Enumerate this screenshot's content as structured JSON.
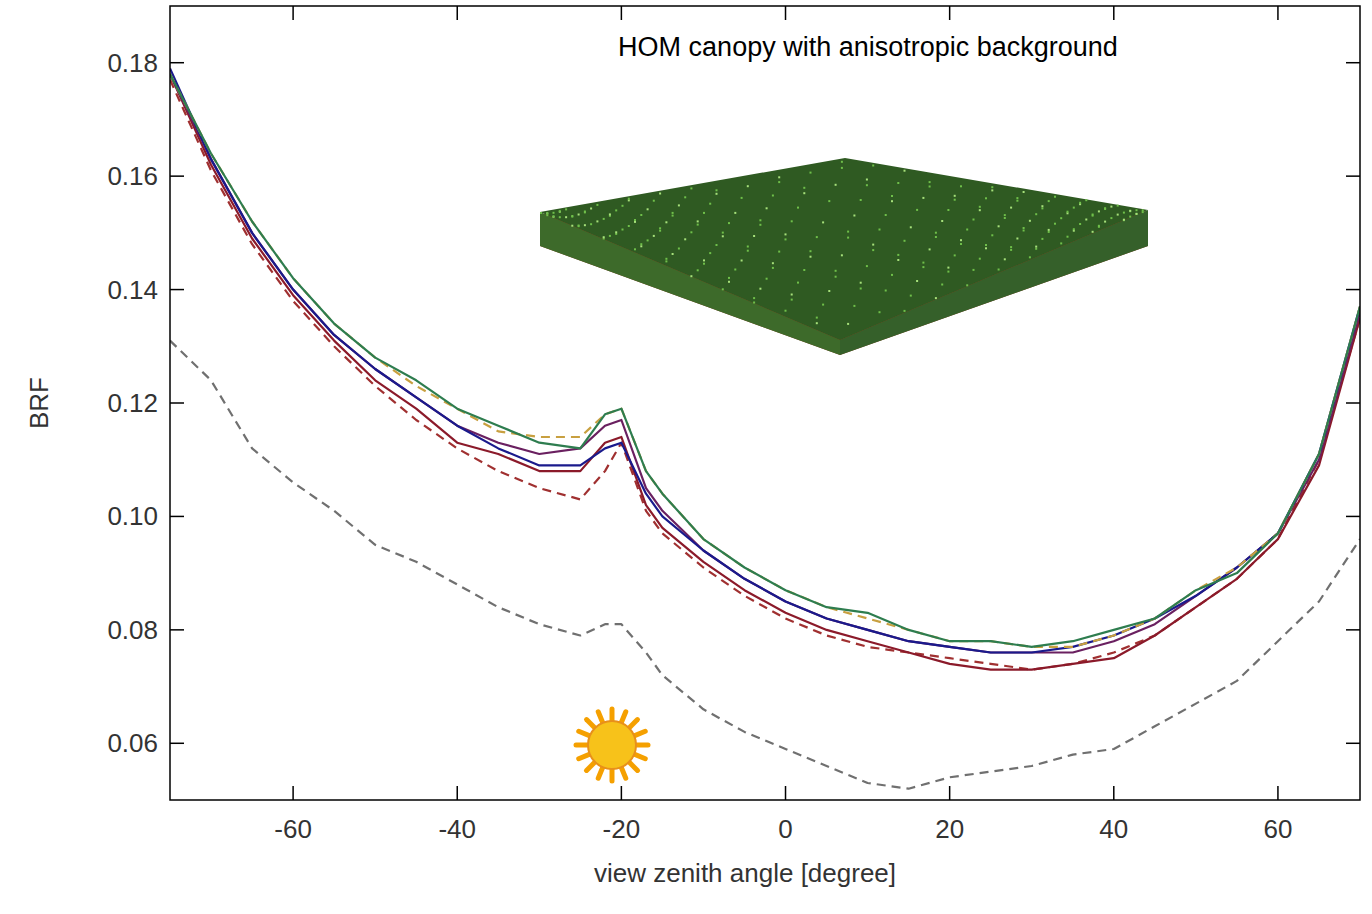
{
  "chart_data": {
    "type": "line",
    "annotation": "HOM canopy with anisotropic background",
    "x_label": "view zenith angle [degree]",
    "y_label": "BRF",
    "x": [
      -75,
      -70,
      -65,
      -60,
      -55,
      -50,
      -45,
      -40,
      -35,
      -30,
      -25,
      -22,
      -20,
      -17,
      -15,
      -10,
      -5,
      0,
      5,
      10,
      15,
      20,
      25,
      30,
      35,
      40,
      45,
      50,
      55,
      60,
      65,
      70
    ],
    "xlim": [
      -75,
      70
    ],
    "xticks": [
      -60,
      -40,
      -20,
      0,
      20,
      40,
      60
    ],
    "ylim": [
      0.05,
      0.19
    ],
    "yticks": [
      0.06,
      0.08,
      {
        "value": 0.1,
        "label": "0.10"
      },
      0.12,
      0.14,
      0.16,
      0.18
    ],
    "grid": false,
    "series": [
      {
        "color": "#707070",
        "line_style": "dashed",
        "values": [
          0.131,
          0.124,
          0.112,
          0.106,
          0.101,
          0.095,
          0.092,
          0.088,
          0.084,
          0.081,
          0.079,
          0.081,
          0.081,
          0.076,
          0.072,
          0.066,
          0.062,
          0.059,
          0.056,
          0.053,
          0.052,
          0.054,
          0.055,
          0.056,
          0.058,
          0.059,
          0.063,
          0.067,
          0.071,
          0.078,
          0.085,
          0.096
        ]
      },
      {
        "color": "#a03030",
        "line_style": "dashed",
        "values": [
          0.177,
          0.161,
          0.148,
          0.138,
          0.13,
          0.123,
          0.117,
          0.112,
          0.108,
          0.105,
          0.103,
          0.108,
          0.113,
          0.101,
          0.097,
          0.091,
          0.086,
          0.082,
          0.079,
          0.077,
          0.076,
          0.075,
          0.074,
          0.073,
          0.074,
          0.076,
          0.079,
          0.084,
          0.089,
          0.096,
          0.11,
          0.135
        ]
      },
      {
        "color": "#8b1a2a",
        "line_style": "solid",
        "values": [
          0.178,
          0.162,
          0.149,
          0.139,
          0.131,
          0.124,
          0.119,
          0.113,
          0.111,
          0.108,
          0.108,
          0.113,
          0.114,
          0.102,
          0.098,
          0.092,
          0.087,
          0.083,
          0.08,
          0.078,
          0.076,
          0.074,
          0.073,
          0.073,
          0.074,
          0.075,
          0.079,
          0.084,
          0.089,
          0.096,
          0.109,
          0.135
        ]
      },
      {
        "color": "#6a2060",
        "line_style": "solid",
        "values": [
          0.178,
          0.163,
          0.15,
          0.14,
          0.132,
          0.126,
          0.121,
          0.116,
          0.113,
          0.111,
          0.112,
          0.116,
          0.117,
          0.105,
          0.101,
          0.094,
          0.089,
          0.085,
          0.082,
          0.08,
          0.078,
          0.077,
          0.076,
          0.076,
          0.076,
          0.078,
          0.081,
          0.086,
          0.091,
          0.097,
          0.11,
          0.136
        ]
      },
      {
        "color": "#1a1a8c",
        "line_style": "solid",
        "values": [
          0.179,
          0.163,
          0.15,
          0.14,
          0.132,
          0.126,
          0.121,
          0.116,
          0.112,
          0.109,
          0.109,
          0.112,
          0.113,
          0.104,
          0.1,
          0.094,
          0.089,
          0.085,
          0.082,
          0.08,
          0.078,
          0.077,
          0.076,
          0.076,
          0.077,
          0.079,
          0.082,
          0.086,
          0.091,
          0.097,
          0.111,
          0.137
        ]
      },
      {
        "color": "#c8a040",
        "line_style": "dashed",
        "values": [
          0.178,
          0.164,
          0.152,
          0.142,
          0.134,
          0.128,
          0.123,
          0.119,
          0.115,
          0.114,
          0.114,
          0.118,
          0.119,
          0.108,
          0.104,
          0.096,
          0.091,
          0.087,
          0.084,
          0.082,
          0.08,
          0.078,
          0.078,
          0.077,
          0.077,
          0.079,
          0.082,
          0.087,
          0.091,
          0.097,
          0.111,
          0.137
        ]
      },
      {
        "color": "#2e7d4f",
        "line_style": "solid",
        "values": [
          0.178,
          0.164,
          0.152,
          0.142,
          0.134,
          0.128,
          0.124,
          0.119,
          0.116,
          0.113,
          0.112,
          0.118,
          0.119,
          0.108,
          0.104,
          0.096,
          0.091,
          0.087,
          0.084,
          0.083,
          0.08,
          0.078,
          0.078,
          0.077,
          0.078,
          0.08,
          0.082,
          0.087,
          0.09,
          0.097,
          0.111,
          0.137
        ]
      }
    ]
  }
}
